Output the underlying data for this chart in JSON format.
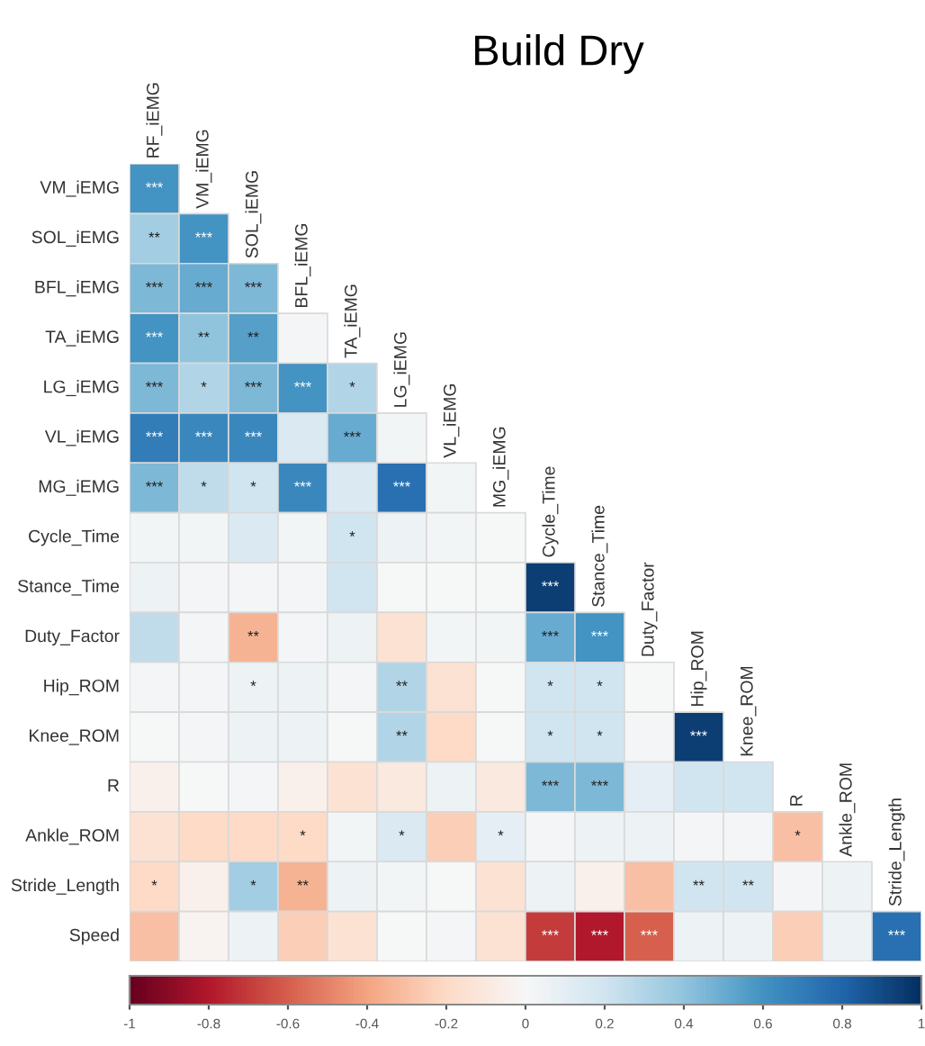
{
  "chart_data": {
    "type": "heatmap",
    "title": "Build Dry",
    "categories": [
      "RF_iEMG",
      "VM_iEMG",
      "SOL_iEMG",
      "BFL_iEMG",
      "TA_iEMG",
      "LG_iEMG",
      "VL_iEMG",
      "MG_iEMG",
      "Cycle_Time",
      "Stance_Time",
      "Duty_Factor",
      "Hip_ROM",
      "Knee_ROM",
      "R",
      "Ankle_ROM",
      "Stride_Length"
    ],
    "y_categories": [
      "VM_iEMG",
      "SOL_iEMG",
      "BFL_iEMG",
      "TA_iEMG",
      "LG_iEMG",
      "VL_iEMG",
      "MG_iEMG",
      "Cycle_Time",
      "Stance_Time",
      "Duty_Factor",
      "Hip_ROM",
      "Knee_ROM",
      "R",
      "Ankle_ROM",
      "Stride_Length",
      "Speed"
    ],
    "cells": [
      [
        0.6,
        null,
        null,
        null,
        null,
        null,
        null,
        null,
        null,
        null,
        null,
        null,
        null,
        null,
        null,
        null
      ],
      [
        0.35,
        0.6,
        null,
        null,
        null,
        null,
        null,
        null,
        null,
        null,
        null,
        null,
        null,
        null,
        null,
        null
      ],
      [
        0.45,
        0.5,
        0.45,
        null,
        null,
        null,
        null,
        null,
        null,
        null,
        null,
        null,
        null,
        null,
        null,
        null
      ],
      [
        0.6,
        0.4,
        0.55,
        0.02,
        null,
        null,
        null,
        null,
        null,
        null,
        null,
        null,
        null,
        null,
        null,
        null
      ],
      [
        0.45,
        0.3,
        0.45,
        0.6,
        0.3,
        null,
        null,
        null,
        null,
        null,
        null,
        null,
        null,
        null,
        null,
        null
      ],
      [
        0.7,
        0.65,
        0.65,
        0.15,
        0.5,
        0.03,
        null,
        null,
        null,
        null,
        null,
        null,
        null,
        null,
        null,
        null
      ],
      [
        0.45,
        0.25,
        0.2,
        0.65,
        0.15,
        0.75,
        0.03,
        null,
        null,
        null,
        null,
        null,
        null,
        null,
        null,
        null
      ],
      [
        0.03,
        0.03,
        0.15,
        0.03,
        0.2,
        0.05,
        0.03,
        0.0,
        null,
        null,
        null,
        null,
        null,
        null,
        null,
        null
      ],
      [
        0.05,
        0.02,
        0.02,
        0.02,
        0.2,
        0.0,
        0.0,
        0.0,
        0.95,
        null,
        null,
        null,
        null,
        null,
        null,
        null
      ],
      [
        0.25,
        0.02,
        -0.35,
        0.02,
        0.05,
        -0.15,
        0.03,
        0.03,
        0.5,
        0.6,
        null,
        null,
        null,
        null,
        null,
        null
      ],
      [
        0.02,
        0.02,
        0.05,
        0.05,
        0.02,
        0.3,
        -0.15,
        0.0,
        0.2,
        0.2,
        0.0,
        null,
        null,
        null,
        null,
        null
      ],
      [
        0.0,
        0.02,
        0.05,
        0.05,
        0.0,
        0.3,
        -0.2,
        0.0,
        0.2,
        0.2,
        0.02,
        0.95,
        null,
        null,
        null,
        null
      ],
      [
        -0.05,
        0.0,
        0.02,
        -0.05,
        -0.15,
        -0.1,
        0.05,
        -0.1,
        0.45,
        0.45,
        0.1,
        0.2,
        0.2,
        null,
        null,
        null
      ],
      [
        -0.15,
        -0.2,
        -0.2,
        -0.2,
        0.03,
        0.15,
        -0.25,
        0.1,
        0.02,
        0.05,
        0.05,
        0.02,
        0.02,
        -0.3,
        null,
        null
      ],
      [
        -0.2,
        -0.05,
        0.35,
        -0.35,
        0.05,
        0.03,
        0.0,
        -0.15,
        0.05,
        -0.05,
        -0.3,
        0.2,
        0.2,
        0.02,
        0.05,
        null
      ],
      [
        -0.3,
        -0.03,
        0.05,
        -0.25,
        -0.15,
        0.0,
        0.02,
        -0.15,
        -0.7,
        -0.8,
        -0.6,
        0.05,
        0.05,
        -0.25,
        0.05,
        0.75
      ]
    ],
    "cell_labels": [
      [
        "***",
        null,
        null,
        null,
        null,
        null,
        null,
        null,
        null,
        null,
        null,
        null,
        null,
        null,
        null,
        null
      ],
      [
        "**",
        "***",
        null,
        null,
        null,
        null,
        null,
        null,
        null,
        null,
        null,
        null,
        null,
        null,
        null,
        null
      ],
      [
        "***",
        "***",
        "***",
        null,
        null,
        null,
        null,
        null,
        null,
        null,
        null,
        null,
        null,
        null,
        null,
        null
      ],
      [
        "***",
        "**",
        "**",
        null,
        null,
        null,
        null,
        null,
        null,
        null,
        null,
        null,
        null,
        null,
        null,
        null
      ],
      [
        "***",
        "*",
        "***",
        "***",
        "*",
        null,
        null,
        null,
        null,
        null,
        null,
        null,
        null,
        null,
        null,
        null
      ],
      [
        "***",
        "***",
        "***",
        null,
        "***",
        null,
        null,
        null,
        null,
        null,
        null,
        null,
        null,
        null,
        null,
        null
      ],
      [
        "***",
        "*",
        "*",
        "***",
        null,
        "***",
        null,
        null,
        null,
        null,
        null,
        null,
        null,
        null,
        null,
        null
      ],
      [
        null,
        null,
        null,
        null,
        "*",
        null,
        null,
        null,
        null,
        null,
        null,
        null,
        null,
        null,
        null,
        null
      ],
      [
        null,
        null,
        null,
        null,
        null,
        null,
        null,
        null,
        "***",
        null,
        null,
        null,
        null,
        null,
        null,
        null
      ],
      [
        null,
        null,
        "**",
        null,
        null,
        null,
        null,
        null,
        "***",
        "***",
        null,
        null,
        null,
        null,
        null,
        null
      ],
      [
        null,
        null,
        "*",
        null,
        null,
        "**",
        null,
        null,
        "*",
        "*",
        null,
        null,
        null,
        null,
        null,
        null
      ],
      [
        null,
        null,
        null,
        null,
        null,
        "**",
        null,
        null,
        "*",
        "*",
        null,
        "***",
        null,
        null,
        null,
        null
      ],
      [
        null,
        null,
        null,
        null,
        null,
        null,
        null,
        null,
        "***",
        "***",
        null,
        null,
        null,
        null,
        null,
        null
      ],
      [
        null,
        null,
        null,
        "*",
        null,
        "*",
        null,
        "*",
        null,
        null,
        null,
        null,
        null,
        "*",
        null,
        null
      ],
      [
        "*",
        null,
        "*",
        "**",
        null,
        null,
        null,
        null,
        null,
        null,
        null,
        "**",
        "**",
        null,
        null,
        null
      ],
      [
        null,
        null,
        null,
        null,
        null,
        null,
        null,
        null,
        "***",
        "***",
        "***",
        null,
        null,
        null,
        null,
        "***"
      ]
    ],
    "clim": [
      -1,
      1
    ],
    "cticks": [
      -1,
      -0.8,
      -0.6,
      -0.4,
      -0.2,
      0,
      0.2,
      0.4,
      0.6,
      0.8,
      1
    ]
  }
}
